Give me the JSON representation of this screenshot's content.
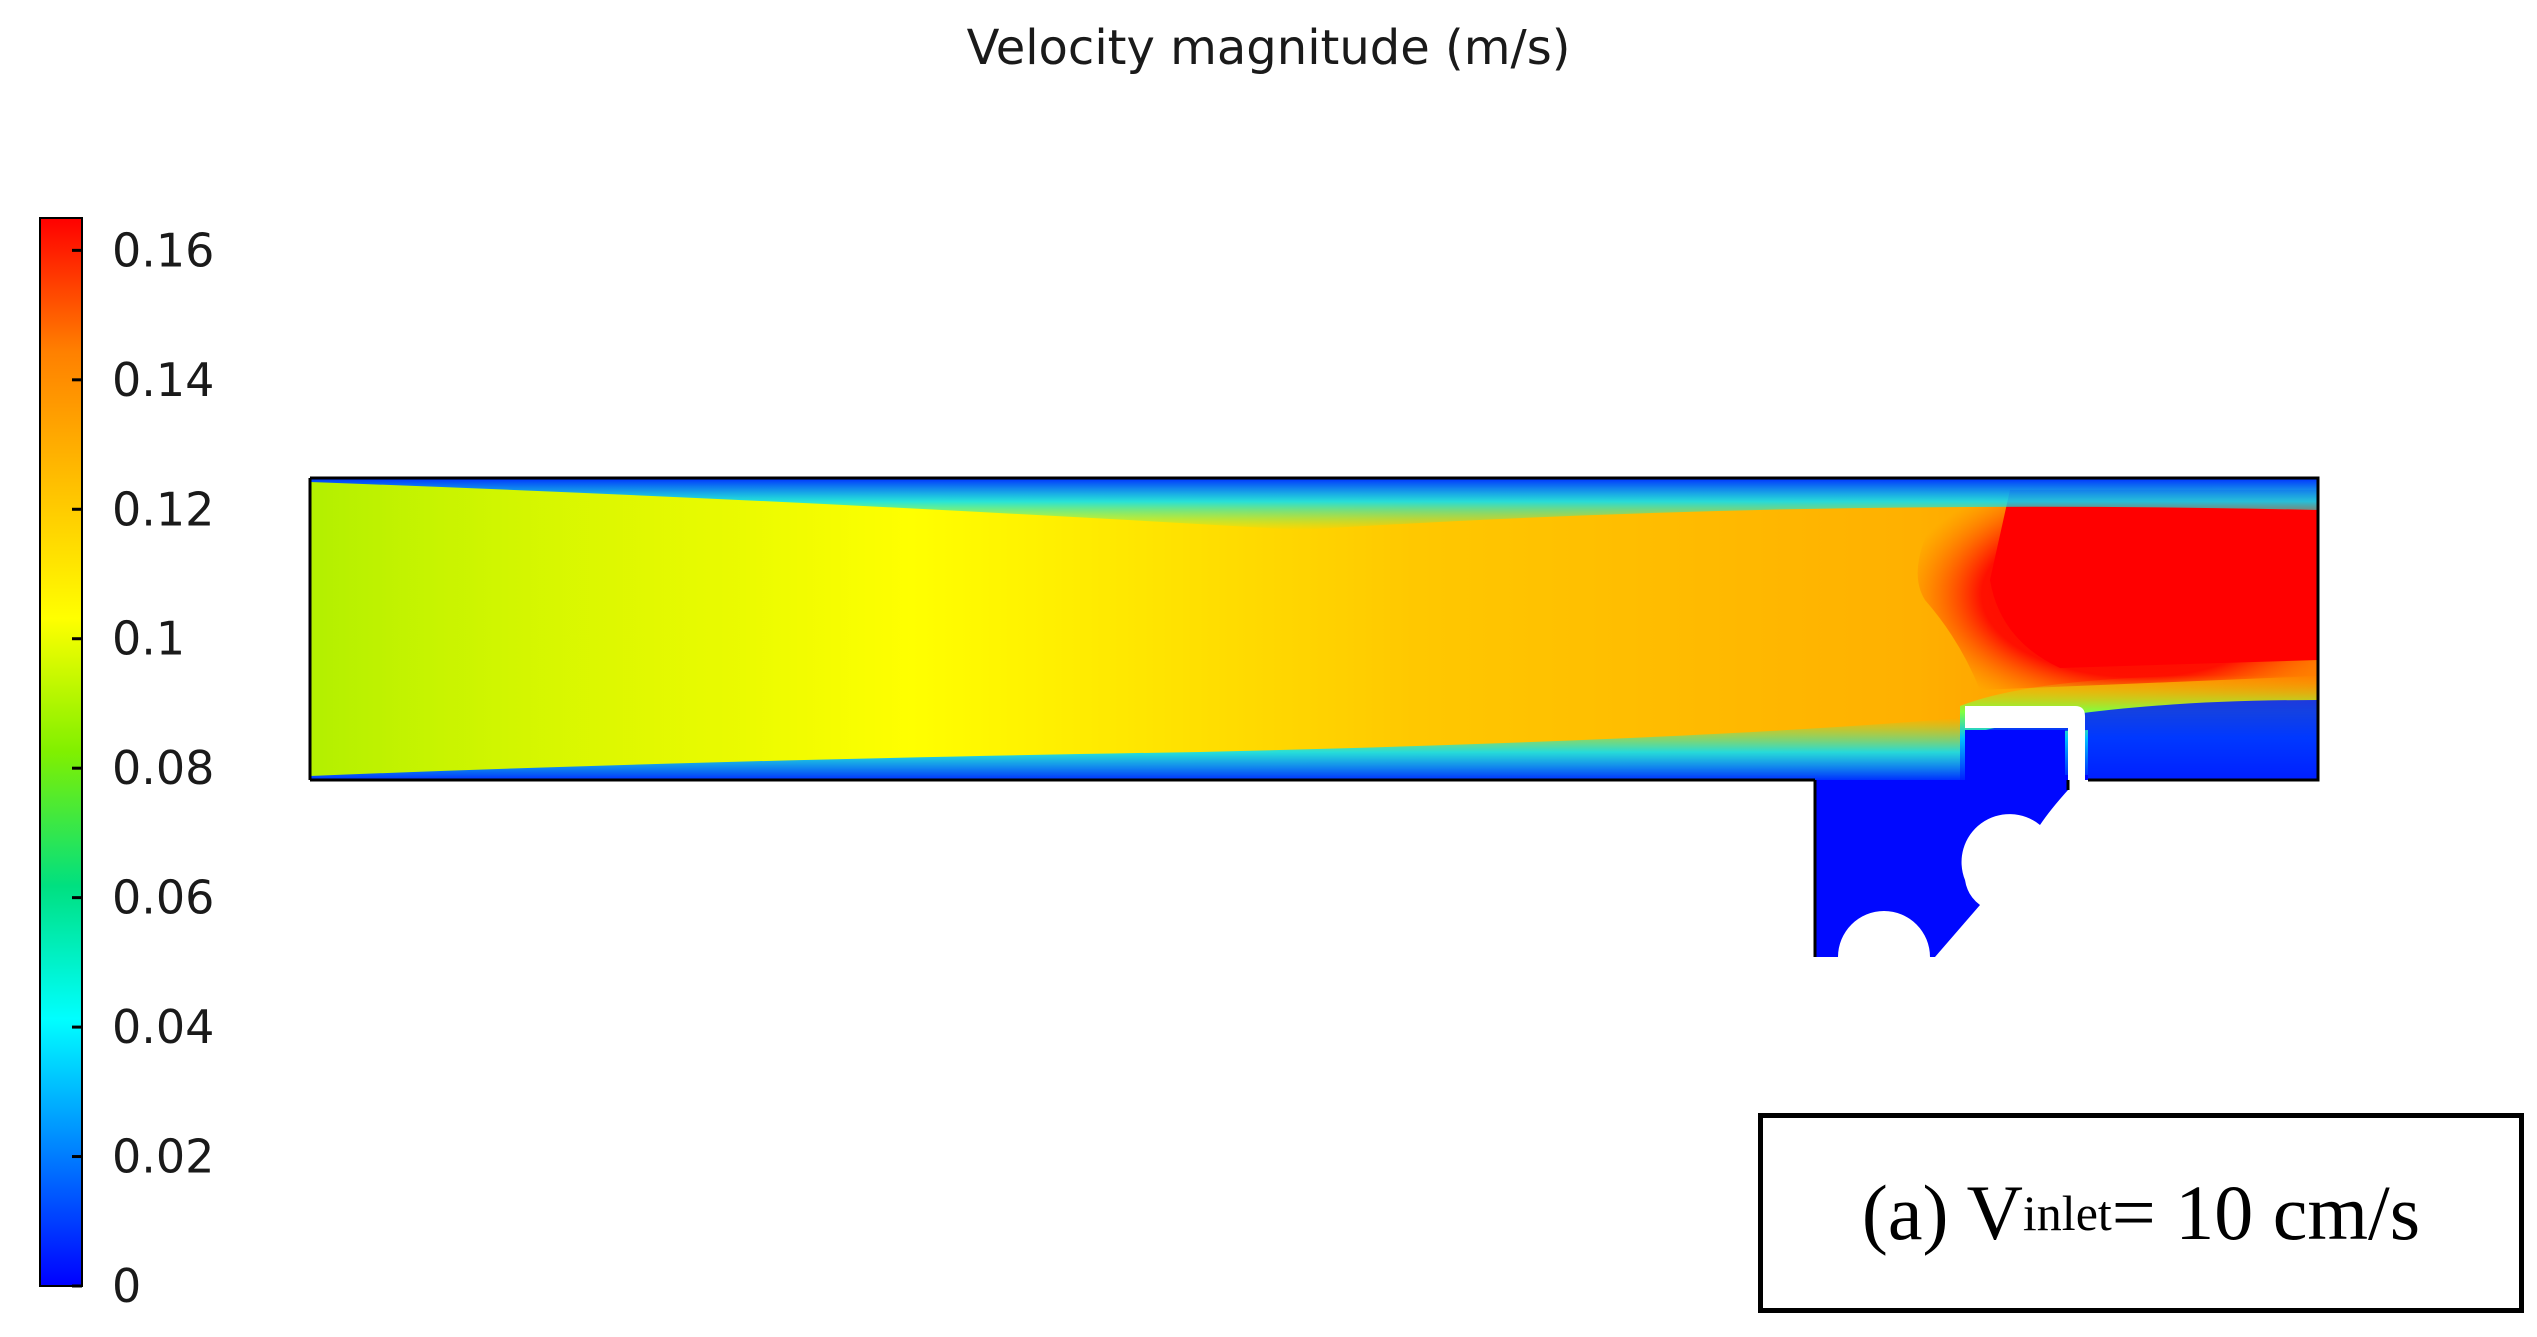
{
  "chart_data": {
    "type": "heatmap",
    "title": "Velocity magnitude (m/s)",
    "colorbar": {
      "range": [
        0,
        0.165
      ],
      "ticks": [
        {
          "value": 0,
          "label": "0"
        },
        {
          "value": 0.02,
          "label": "0.02"
        },
        {
          "value": 0.04,
          "label": "0.04"
        },
        {
          "value": 0.06,
          "label": "0.06"
        },
        {
          "value": 0.08,
          "label": "0.08"
        },
        {
          "value": 0.1,
          "label": "0.1"
        },
        {
          "value": 0.12,
          "label": "0.12"
        },
        {
          "value": 0.14,
          "label": "0.14"
        },
        {
          "value": 0.16,
          "label": "0.16"
        }
      ],
      "colormap": [
        "#0000ff",
        "#0080ff",
        "#00ffff",
        "#00e080",
        "#80f000",
        "#ffff00",
        "#ffc000",
        "#ff8000",
        "#ff0000"
      ]
    },
    "field_colors": {
      "wall": "#0030ff",
      "inlet_core": "#b8f000",
      "channel_core": "#ffc800",
      "outlet_jet": "#ff0000",
      "cavity": "#0000ff"
    }
  },
  "caption": {
    "prefix": "(a) V",
    "subscript": "inlet",
    "suffix": " = 10 cm/s"
  }
}
